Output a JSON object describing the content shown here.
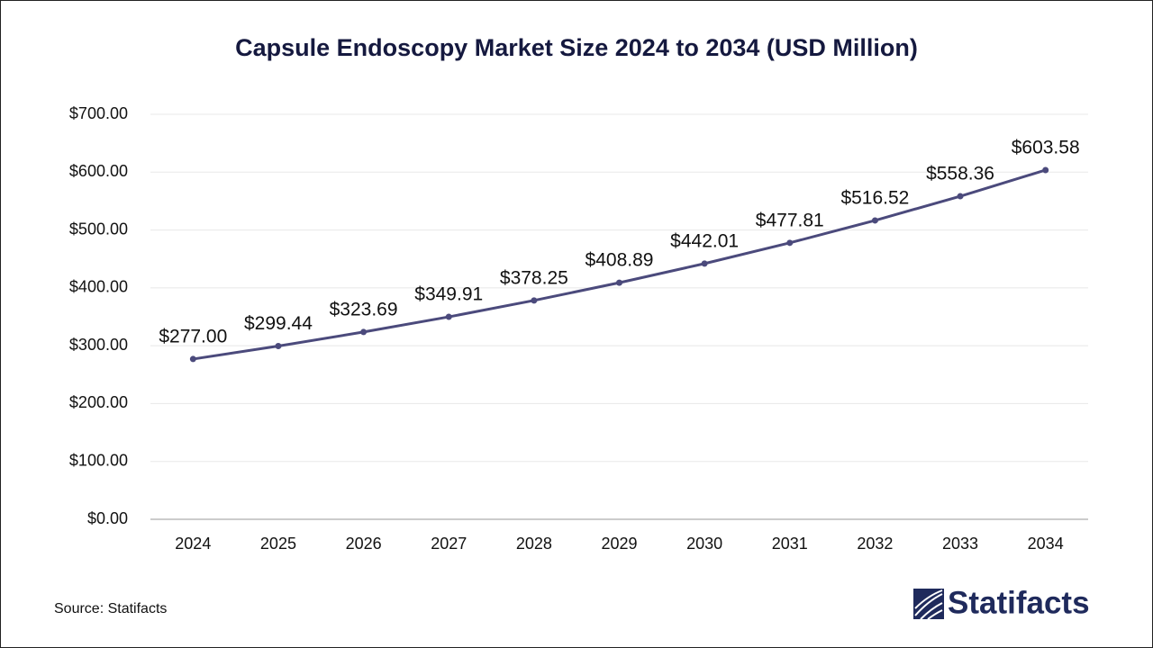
{
  "chart_data": {
    "type": "line",
    "title": "Capsule Endoscopy Market Size 2024 to 2034  (USD Million)",
    "categories": [
      "2024",
      "2025",
      "2026",
      "2027",
      "2028",
      "2029",
      "2030",
      "2031",
      "2032",
      "2033",
      "2034"
    ],
    "series": [
      {
        "name": "Capsule Endoscopy Market Size",
        "color": "#4b4a7c",
        "values": [
          277.0,
          299.44,
          323.69,
          349.91,
          378.25,
          408.89,
          442.01,
          477.81,
          516.52,
          558.36,
          603.58
        ],
        "value_labels": [
          "$277.00",
          "$299.44",
          "$323.69",
          "$349.91",
          "$378.25",
          "$408.89",
          "$442.01",
          "$477.81",
          "$516.52",
          "$558.36",
          "$603.58"
        ]
      }
    ],
    "ylim": [
      0,
      700
    ],
    "yticks": [
      {
        "value": 0,
        "label": "$0.00"
      },
      {
        "value": 100,
        "label": "$100.00"
      },
      {
        "value": 200,
        "label": "$200.00"
      },
      {
        "value": 300,
        "label": "$300.00"
      },
      {
        "value": 400,
        "label": "$400.00"
      },
      {
        "value": 500,
        "label": "$500.00"
      },
      {
        "value": 600,
        "label": "$600.00"
      },
      {
        "value": 700,
        "label": "$700.00"
      }
    ],
    "grid": true,
    "source": "Source: Statifacts",
    "logo": "Statifacts"
  }
}
